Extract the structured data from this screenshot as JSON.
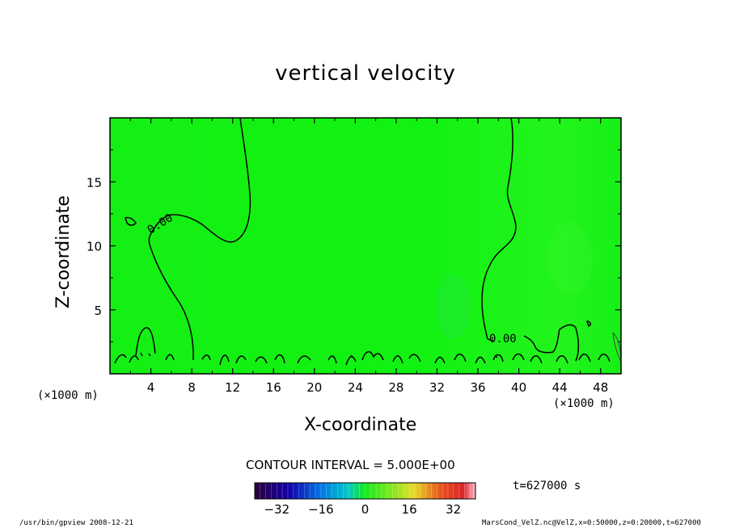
{
  "chart_data": {
    "type": "heatmap",
    "title": "vertical velocity",
    "xlabel": "X-coordinate",
    "ylabel": "Z-coordinate",
    "x_unit": "(×1000 m)",
    "xlim": [
      0,
      50
    ],
    "ylim": [
      0,
      20
    ],
    "x_ticks": [
      4,
      8,
      12,
      16,
      20,
      24,
      28,
      32,
      36,
      40,
      44,
      48
    ],
    "y_ticks": [
      5,
      10,
      15
    ],
    "contour_labels": [
      "0.00",
      "0.00"
    ],
    "contour_interval": "CONTOUR INTERVAL = 5.000E+00",
    "colorbar": {
      "ticks": [
        -32,
        -16,
        0,
        16,
        32
      ],
      "range": [
        -40,
        40
      ]
    },
    "time_label": "t=627000 s",
    "field_value_dominant": 0,
    "colors": {
      "background_field": "#12f212",
      "contour": "#000000",
      "frame": "#000000"
    }
  },
  "footer": {
    "left": "/usr/bin/gpview   2008-12-21",
    "right": "MarsCond_VelZ.nc@VelZ,x=0:50000,z=0:20000,t=627000"
  }
}
